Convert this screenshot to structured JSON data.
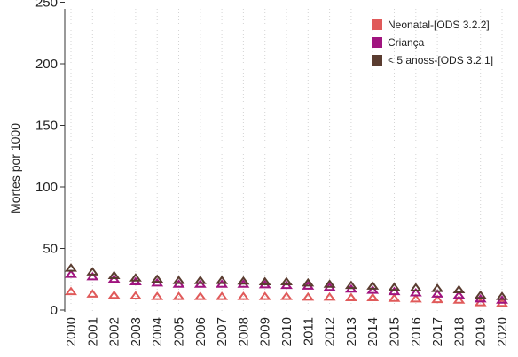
{
  "chart_data": {
    "type": "scatter",
    "marker": "triangle-hollow",
    "title": "",
    "xlabel": "",
    "ylabel": "Mortes por 1000",
    "ylim": [
      0,
      250
    ],
    "yticks": [
      0,
      50,
      100,
      150,
      200,
      250
    ],
    "grid": "vertical dotted",
    "legend_position": "top-right",
    "categories": [
      "2000",
      "2001",
      "2002",
      "2003",
      "2004",
      "2005",
      "2006",
      "2007",
      "2008",
      "2009",
      "2010",
      "2011",
      "2012",
      "2013",
      "2014",
      "2015",
      "2016",
      "2017",
      "2018",
      "2019",
      "2020"
    ],
    "series": [
      {
        "name": "Neonatal-[ODS 3.2.2]",
        "color": "#e05a5a",
        "values": [
          15,
          13,
          12,
          11.5,
          11,
          11,
          11,
          11,
          11,
          11,
          11,
          10.5,
          10.5,
          10,
          10,
          9.5,
          9,
          8.5,
          8,
          6,
          5.5
        ]
      },
      {
        "name": "Criança",
        "color": "#a0147f",
        "values": [
          29,
          27,
          25,
          23,
          22,
          21,
          21,
          21,
          21,
          20.5,
          20,
          19.5,
          18.5,
          17,
          16,
          15,
          14,
          13,
          12,
          9,
          8
        ]
      },
      {
        "name": "< 5 anoss-[ODS 3.2.1]",
        "color": "#5a3c30",
        "values": [
          34,
          31,
          28,
          26,
          25,
          24,
          24,
          24,
          23.5,
          23,
          23,
          22,
          21,
          20,
          19.5,
          18.5,
          18,
          17.5,
          16.5,
          12,
          11
        ]
      }
    ]
  }
}
